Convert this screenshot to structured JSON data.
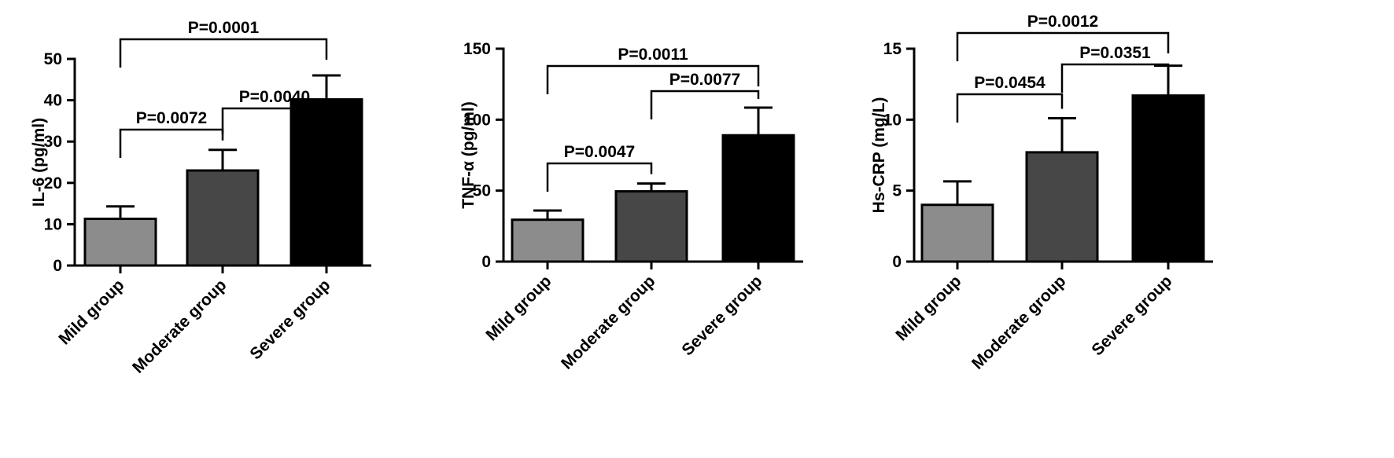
{
  "chart_data": [
    {
      "type": "bar",
      "ylabel": "IL-6 (pg/ml)",
      "ylim": [
        0,
        50
      ],
      "yticks": [
        0,
        10,
        20,
        30,
        40,
        50
      ],
      "categories": [
        "Mild group",
        "Moderate group",
        "Severe group"
      ],
      "values": [
        11.3,
        23.0,
        40.2
      ],
      "errors": [
        3.0,
        5.0,
        5.8
      ],
      "colors": [
        "#8c8c8c",
        "#474747",
        "#000000"
      ],
      "comparisons": [
        {
          "from": 0,
          "to": 1,
          "label": "P=0.0072"
        },
        {
          "from": 1,
          "to": 2,
          "label": "P=0.0040"
        },
        {
          "from": 0,
          "to": 2,
          "label": "P=0.0001"
        }
      ]
    },
    {
      "type": "bar",
      "ylabel": "TNF-α (pg/ml)",
      "ylim": [
        0,
        150
      ],
      "yticks": [
        0,
        50,
        100,
        150
      ],
      "categories": [
        "Mild group",
        "Moderate group",
        "Severe group"
      ],
      "values": [
        29.5,
        49.5,
        89.0
      ],
      "errors": [
        6.5,
        5.5,
        19.5
      ],
      "colors": [
        "#8c8c8c",
        "#474747",
        "#000000"
      ],
      "comparisons": [
        {
          "from": 0,
          "to": 1,
          "label": "P=0.0047"
        },
        {
          "from": 1,
          "to": 2,
          "label": "P=0.0077"
        },
        {
          "from": 0,
          "to": 2,
          "label": "P=0.0011"
        }
      ]
    },
    {
      "type": "bar",
      "ylabel": "Hs-CRP (mg/L)",
      "ylim": [
        0,
        15
      ],
      "yticks": [
        0,
        5,
        10,
        15
      ],
      "categories": [
        "Mild group",
        "Moderate group",
        "Severe group"
      ],
      "values": [
        4.0,
        7.7,
        11.7
      ],
      "errors": [
        1.65,
        2.4,
        2.1
      ],
      "colors": [
        "#8c8c8c",
        "#474747",
        "#000000"
      ],
      "comparisons": [
        {
          "from": 0,
          "to": 1,
          "label": "P=0.0454"
        },
        {
          "from": 1,
          "to": 2,
          "label": "P=0.0351"
        },
        {
          "from": 0,
          "to": 2,
          "label": "P=0.0012"
        }
      ]
    }
  ]
}
